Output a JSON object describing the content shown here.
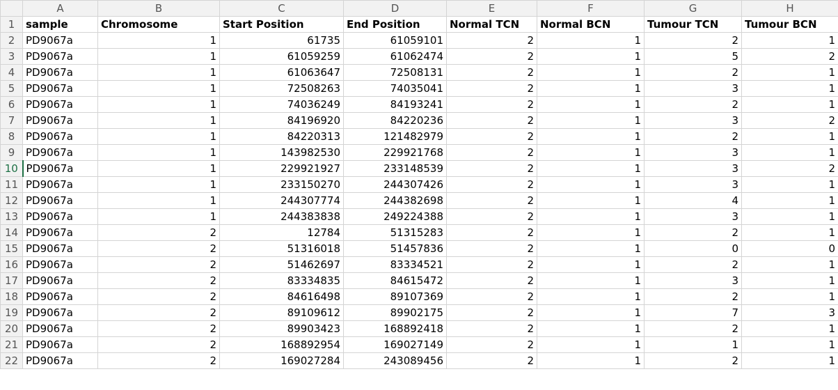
{
  "columns": [
    "A",
    "B",
    "C",
    "D",
    "E",
    "F",
    "G",
    "H"
  ],
  "active_row": 10,
  "header_row": {
    "row_number": "1",
    "cells": [
      "sample",
      "Chromosome",
      "Start Position",
      "End Position",
      "Normal TCN",
      "Normal BCN",
      "Tumour TCN",
      "Tumour BCN"
    ]
  },
  "rows": [
    {
      "n": "2",
      "cells": [
        "PD9067a",
        "1",
        "61735",
        "61059101",
        "2",
        "1",
        "2",
        "1"
      ]
    },
    {
      "n": "3",
      "cells": [
        "PD9067a",
        "1",
        "61059259",
        "61062474",
        "2",
        "1",
        "5",
        "2"
      ]
    },
    {
      "n": "4",
      "cells": [
        "PD9067a",
        "1",
        "61063647",
        "72508131",
        "2",
        "1",
        "2",
        "1"
      ]
    },
    {
      "n": "5",
      "cells": [
        "PD9067a",
        "1",
        "72508263",
        "74035041",
        "2",
        "1",
        "3",
        "1"
      ]
    },
    {
      "n": "6",
      "cells": [
        "PD9067a",
        "1",
        "74036249",
        "84193241",
        "2",
        "1",
        "2",
        "1"
      ]
    },
    {
      "n": "7",
      "cells": [
        "PD9067a",
        "1",
        "84196920",
        "84220236",
        "2",
        "1",
        "3",
        "2"
      ]
    },
    {
      "n": "8",
      "cells": [
        "PD9067a",
        "1",
        "84220313",
        "121482979",
        "2",
        "1",
        "2",
        "1"
      ]
    },
    {
      "n": "9",
      "cells": [
        "PD9067a",
        "1",
        "143982530",
        "229921768",
        "2",
        "1",
        "3",
        "1"
      ]
    },
    {
      "n": "10",
      "cells": [
        "PD9067a",
        "1",
        "229921927",
        "233148539",
        "2",
        "1",
        "3",
        "2"
      ]
    },
    {
      "n": "11",
      "cells": [
        "PD9067a",
        "1",
        "233150270",
        "244307426",
        "2",
        "1",
        "3",
        "1"
      ]
    },
    {
      "n": "12",
      "cells": [
        "PD9067a",
        "1",
        "244307774",
        "244382698",
        "2",
        "1",
        "4",
        "1"
      ]
    },
    {
      "n": "13",
      "cells": [
        "PD9067a",
        "1",
        "244383838",
        "249224388",
        "2",
        "1",
        "3",
        "1"
      ]
    },
    {
      "n": "14",
      "cells": [
        "PD9067a",
        "2",
        "12784",
        "51315283",
        "2",
        "1",
        "2",
        "1"
      ]
    },
    {
      "n": "15",
      "cells": [
        "PD9067a",
        "2",
        "51316018",
        "51457836",
        "2",
        "1",
        "0",
        "0"
      ]
    },
    {
      "n": "16",
      "cells": [
        "PD9067a",
        "2",
        "51462697",
        "83334521",
        "2",
        "1",
        "2",
        "1"
      ]
    },
    {
      "n": "17",
      "cells": [
        "PD9067a",
        "2",
        "83334835",
        "84615472",
        "2",
        "1",
        "3",
        "1"
      ]
    },
    {
      "n": "18",
      "cells": [
        "PD9067a",
        "2",
        "84616498",
        "89107369",
        "2",
        "1",
        "2",
        "1"
      ]
    },
    {
      "n": "19",
      "cells": [
        "PD9067a",
        "2",
        "89109612",
        "89902175",
        "2",
        "1",
        "7",
        "3"
      ]
    },
    {
      "n": "20",
      "cells": [
        "PD9067a",
        "2",
        "89903423",
        "168892418",
        "2",
        "1",
        "2",
        "1"
      ]
    },
    {
      "n": "21",
      "cells": [
        "PD9067a",
        "2",
        "168892954",
        "169027149",
        "2",
        "1",
        "1",
        "1"
      ]
    },
    {
      "n": "22",
      "cells": [
        "PD9067a",
        "2",
        "169027284",
        "243089456",
        "2",
        "1",
        "2",
        "1"
      ]
    }
  ]
}
